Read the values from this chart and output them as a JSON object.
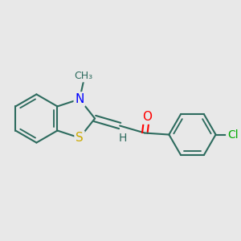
{
  "background_color": "#e8e8e8",
  "bond_color": "#2d6b5e",
  "atom_colors": {
    "N": "#0000ff",
    "S": "#ccaa00",
    "O": "#ff0000",
    "Cl": "#00aa00",
    "H": "#2d6b5e",
    "C": "#2d6b5e"
  },
  "bond_width": 1.5,
  "font_size": 10,
  "figsize": [
    3.0,
    3.0
  ],
  "dpi": 100
}
